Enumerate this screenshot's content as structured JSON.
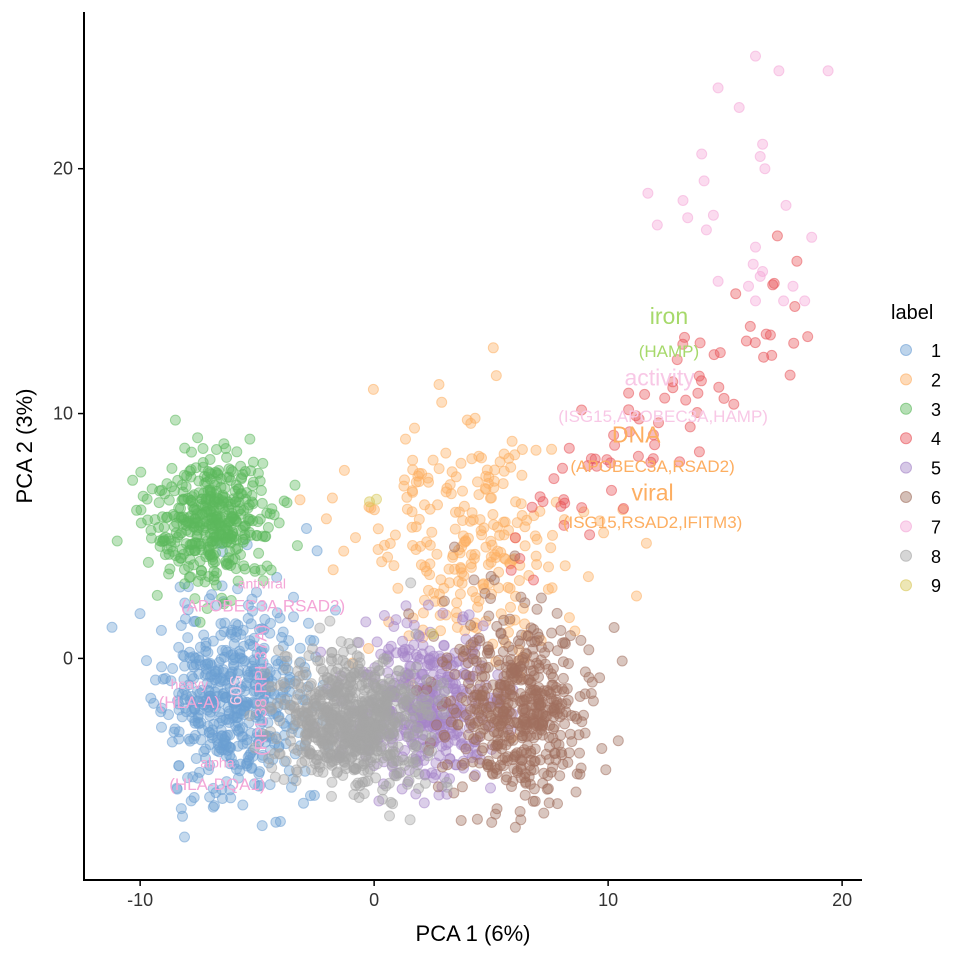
{
  "chart_data": {
    "type": "scatter",
    "title": "",
    "xlabel": "PCA 1 (6%)",
    "ylabel": "PCA 2 (3%)",
    "xlim": [
      -12.4,
      20.85
    ],
    "ylim": [
      -9.05,
      26.4
    ],
    "xticks": [
      -10,
      0,
      10,
      20
    ],
    "yticks": [
      0,
      10,
      20
    ],
    "xtick_labels": [
      "-10",
      "0",
      "10",
      "20"
    ],
    "ytick_labels": [
      "0",
      "10",
      "20"
    ],
    "grid": false,
    "legend": {
      "title": "label",
      "placement": "right",
      "entries": [
        "1",
        "2",
        "3",
        "4",
        "5",
        "6",
        "7",
        "8",
        "9"
      ]
    },
    "point_alpha": 0.4,
    "series": [
      {
        "name": "1",
        "color": "#6c9fd3",
        "center": [
          -6.0,
          -1.6
        ],
        "sd": [
          1.5,
          2.0
        ],
        "n": 520,
        "seed": 11
      },
      {
        "name": "2",
        "color": "#fdae61",
        "center": [
          4.0,
          4.8
        ],
        "sd": [
          2.3,
          2.4
        ],
        "n": 260,
        "seed": 22
      },
      {
        "name": "3",
        "color": "#5cb85c",
        "center": [
          -7.0,
          5.6
        ],
        "sd": [
          1.3,
          1.3
        ],
        "n": 420,
        "seed": 33
      },
      {
        "name": "4",
        "color": "#e8545a",
        "trend": {
          "from": [
            6.5,
            5.0
          ],
          "to": [
            17.5,
            14.5
          ],
          "noise": 1.3
        },
        "n": 75,
        "seed": 44
      },
      {
        "name": "5",
        "color": "#a585c8",
        "center": [
          2.2,
          -2.0
        ],
        "sd": [
          1.5,
          1.6
        ],
        "n": 420,
        "seed": 55
      },
      {
        "name": "6",
        "color": "#a0705f",
        "center": [
          6.2,
          -2.0
        ],
        "sd": [
          1.4,
          1.8
        ],
        "n": 520,
        "seed": 66
      },
      {
        "name": "7",
        "color": "#f4a6d7",
        "points": [
          [
            16.3,
            24.6
          ],
          [
            17.3,
            24.0
          ],
          [
            19.4,
            24.0
          ],
          [
            14.7,
            23.3
          ],
          [
            15.6,
            22.5
          ],
          [
            16.6,
            21.0
          ],
          [
            16.5,
            20.5
          ],
          [
            16.7,
            20.0
          ],
          [
            14.0,
            20.6
          ],
          [
            14.1,
            19.5
          ],
          [
            11.7,
            19.0
          ],
          [
            13.2,
            18.7
          ],
          [
            13.4,
            18.0
          ],
          [
            12.1,
            17.7
          ],
          [
            14.5,
            18.1
          ],
          [
            17.6,
            18.5
          ],
          [
            18.7,
            17.2
          ],
          [
            14.2,
            17.5
          ],
          [
            16.3,
            16.8
          ],
          [
            16.2,
            16.1
          ],
          [
            16.6,
            15.8
          ],
          [
            16.5,
            15.6
          ],
          [
            14.7,
            15.4
          ],
          [
            16.0,
            15.2
          ],
          [
            17.9,
            15.2
          ],
          [
            16.3,
            14.6
          ],
          [
            17.5,
            14.6
          ],
          [
            18.4,
            14.6
          ]
        ]
      },
      {
        "name": "8",
        "color": "#a5a5a5",
        "center": [
          -1.0,
          -2.6
        ],
        "sd": [
          1.5,
          1.3
        ],
        "n": 720,
        "seed": 88
      },
      {
        "name": "9",
        "color": "#d8c85a",
        "points": [
          [
            0.1,
            6.5
          ],
          [
            -0.2,
            6.4
          ],
          [
            2.5,
            1.0
          ]
        ]
      }
    ],
    "annotations": [
      {
        "text": "iron",
        "x": 12.6,
        "y": 13.9,
        "color": "#a6d96a",
        "size": "large"
      },
      {
        "text": "(HAMP)",
        "x": 12.6,
        "y": 12.5,
        "color": "#a6d96a",
        "size": "medium"
      },
      {
        "text": "activity",
        "x": 12.2,
        "y": 11.4,
        "color": "#f8c8e6",
        "size": "large"
      },
      {
        "text": "(ISG15,APOBEC3A,HAMP)",
        "x": 12.35,
        "y": 9.84,
        "color": "#f8c8e6",
        "size": "medium"
      },
      {
        "text": "DNA",
        "x": 11.2,
        "y": 9.06,
        "color": "#fdae61",
        "size": "large"
      },
      {
        "text": "(APOBEC3A,RSAD2)",
        "x": 11.9,
        "y": 7.8,
        "color": "#fdae61",
        "size": "medium"
      },
      {
        "text": "viral",
        "x": 11.9,
        "y": 6.7,
        "color": "#fdae61",
        "size": "large"
      },
      {
        "text": "(ISG15,RSAD2,IFITM3)",
        "x": 11.9,
        "y": 5.5,
        "color": "#fdae61",
        "size": "medium"
      },
      {
        "text": "antiviral",
        "x": -4.8,
        "y": 3.0,
        "color": "#f4a6d7",
        "size": "small"
      },
      {
        "text": "(APOBEC3A,RSAD2)",
        "x": -4.75,
        "y": 2.1,
        "color": "#f4a6d7",
        "size": "medium"
      },
      {
        "text": "heavy",
        "x": -7.9,
        "y": -1.1,
        "color": "#f4a6d7",
        "size": "small"
      },
      {
        "text": "(HLA-A)",
        "x": -7.9,
        "y": -1.85,
        "color": "#f4a6d7",
        "size": "medium"
      },
      {
        "text": "60S",
        "x": -5.85,
        "y": -1.3,
        "color": "#f8c8e6",
        "size": "medium",
        "rotate": -90
      },
      {
        "text": "(RPL38,RPL37A)",
        "x": -4.8,
        "y": -1.3,
        "color": "#f4a6d7",
        "size": "medium",
        "rotate": -90
      },
      {
        "text": "alpha",
        "x": -6.7,
        "y": -4.3,
        "color": "#f4a6d7",
        "size": "small"
      },
      {
        "text": "(HLA-DQA1)",
        "x": -6.7,
        "y": -5.2,
        "color": "#f4a6d7",
        "size": "medium"
      }
    ]
  }
}
